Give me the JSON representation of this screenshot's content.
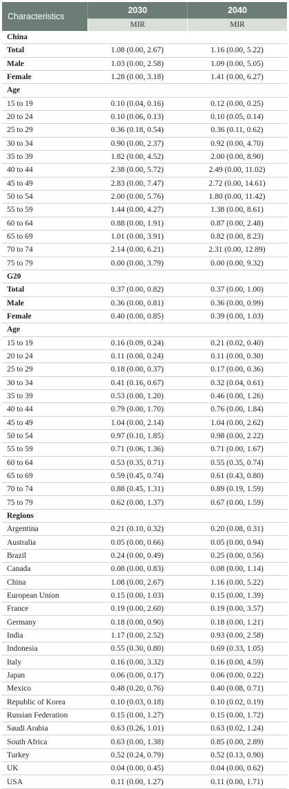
{
  "header": {
    "characteristics": "Characteristics",
    "year1": "2030",
    "year2": "2040",
    "sub1": "MIR",
    "sub2": "MIR"
  },
  "rows": [
    {
      "label": "China",
      "v1": "",
      "v2": "",
      "kind": "section"
    },
    {
      "label": "Total",
      "v1": "1.08 (0.00, 2.67)",
      "v2": "1.16 (0.00, 5.22)",
      "kind": "bold"
    },
    {
      "label": "Male",
      "v1": "1.03 (0.00, 2.58)",
      "v2": "1.09 (0.00, 5.05)",
      "kind": "bold"
    },
    {
      "label": "Female",
      "v1": "1.28 (0.00, 3.18)",
      "v2": "1.41 (0.00, 6.27)",
      "kind": "bold"
    },
    {
      "label": "Age",
      "v1": "",
      "v2": "",
      "kind": "section"
    },
    {
      "label": "15 to 19",
      "v1": "0.10 (0.04, 0.16)",
      "v2": "0.12 (0.00, 0.25)",
      "kind": "normal"
    },
    {
      "label": "20 to 24",
      "v1": "0.10 (0.06, 0.13)",
      "v2": "0.10 (0.05, 0.14)",
      "kind": "normal"
    },
    {
      "label": "25 to 29",
      "v1": "0.36 (0.18, 0.54)",
      "v2": "0.36 (0.11, 0.62)",
      "kind": "normal"
    },
    {
      "label": "30 to 34",
      "v1": "0.90 (0.00, 2.37)",
      "v2": "0.92 (0.00, 4.70)",
      "kind": "normal"
    },
    {
      "label": "35 to 39",
      "v1": "1.82 (0.00, 4.52)",
      "v2": "2.00 (0.00, 8.90)",
      "kind": "normal"
    },
    {
      "label": "40 to 44",
      "v1": "2.38 (0.00, 5.72)",
      "v2": "2.49 (0.00, 11.02)",
      "kind": "normal"
    },
    {
      "label": "45 to 49",
      "v1": "2.83 (0.00, 7.47)",
      "v2": "2.72 (0.00, 14.61)",
      "kind": "normal"
    },
    {
      "label": "50 to 54",
      "v1": "2.00 (0.00, 5.76)",
      "v2": "1.80 (0.00, 11.42)",
      "kind": "normal"
    },
    {
      "label": "55 to 59",
      "v1": "1.44 (0.00, 4.27)",
      "v2": "1.38 (0.00, 8.61)",
      "kind": "normal"
    },
    {
      "label": "60 to 64",
      "v1": "0.88 (0.00, 1.91)",
      "v2": "0.87 (0.00, 2.48)",
      "kind": "normal"
    },
    {
      "label": "65 to 69",
      "v1": "1.01 (0.00, 3.91)",
      "v2": "0.82 (0.00, 8.23)",
      "kind": "normal"
    },
    {
      "label": "70 to 74",
      "v1": "2.14 (0.00, 6.21)",
      "v2": "2.31 (0.00, 12.89)",
      "kind": "normal"
    },
    {
      "label": "75 to 79",
      "v1": "0.00 (0.00, 3.79)",
      "v2": "0.00 (0.00, 9.32)",
      "kind": "normal"
    },
    {
      "label": "G20",
      "v1": "",
      "v2": "",
      "kind": "section"
    },
    {
      "label": "Total",
      "v1": "0.37 (0.00, 0.82)",
      "v2": "0.37 (0.00, 1.00)",
      "kind": "bold"
    },
    {
      "label": "Male",
      "v1": "0.36 (0.00, 0.81)",
      "v2": "0.36 (0.00, 0.99)",
      "kind": "bold"
    },
    {
      "label": "Female",
      "v1": "0.40 (0.00, 0.85)",
      "v2": "0.39 (0.00, 1.03)",
      "kind": "bold"
    },
    {
      "label": "Age",
      "v1": "",
      "v2": "",
      "kind": "section"
    },
    {
      "label": "15 to 19",
      "v1": "0.16 (0.09, 0.24)",
      "v2": "0.21 (0.02, 0.40)",
      "kind": "normal"
    },
    {
      "label": "20 to 24",
      "v1": "0.11 (0.00, 0.24)",
      "v2": "0.11 (0.00, 0.30)",
      "kind": "normal"
    },
    {
      "label": "25 to 29",
      "v1": "0.18 (0.00, 0.37)",
      "v2": "0.17 (0.00, 0.36)",
      "kind": "normal"
    },
    {
      "label": "30 to 34",
      "v1": "0.41 (0.16, 0.67)",
      "v2": "0.32 (0.04, 0.61)",
      "kind": "normal"
    },
    {
      "label": "35 to 39",
      "v1": "0.53 (0.00, 1.20)",
      "v2": "0.46 (0.00, 1.26)",
      "kind": "normal"
    },
    {
      "label": "40 to 44",
      "v1": "0.79 (0.00, 1.70)",
      "v2": "0.76 (0.00, 1.84)",
      "kind": "normal"
    },
    {
      "label": "45 to 49",
      "v1": "1.04 (0.00, 2.14)",
      "v2": "1.04 (0.00, 2.62)",
      "kind": "normal"
    },
    {
      "label": "50 to 54",
      "v1": "0.97 (0.10, 1.85)",
      "v2": "0.98 (0.00, 2.22)",
      "kind": "normal"
    },
    {
      "label": "55 to 59",
      "v1": "0.71 (0.06, 1.36)",
      "v2": "0.71 (0.00, 1.67)",
      "kind": "normal"
    },
    {
      "label": "60 to 64",
      "v1": "0.53 (0.35, 0.71)",
      "v2": "0.55 (0.35, 0.74)",
      "kind": "normal"
    },
    {
      "label": "65 to 69",
      "v1": "0.59 (0.45, 0.74)",
      "v2": "0.61 (0.43, 0.80)",
      "kind": "normal"
    },
    {
      "label": "70 to 74",
      "v1": "0.88 (0.45, 1.31)",
      "v2": "0.89 (0.19, 1.59)",
      "kind": "normal"
    },
    {
      "label": "75 to 79",
      "v1": "0.62 (0.00, 1.37)",
      "v2": "0.67 (0.00, 1.59)",
      "kind": "normal"
    },
    {
      "label": "Regions",
      "v1": "",
      "v2": "",
      "kind": "section"
    },
    {
      "label": "Argentina",
      "v1": "0.21 (0.10, 0.32)",
      "v2": "0.20 (0.08, 0.31)",
      "kind": "normal"
    },
    {
      "label": "Australia",
      "v1": "0.05 (0.00, 0.66)",
      "v2": "0.05 (0.00, 0.94)",
      "kind": "normal"
    },
    {
      "label": "Brazil",
      "v1": "0.24 (0.00, 0.49)",
      "v2": "0.25 (0.00, 0.56)",
      "kind": "normal"
    },
    {
      "label": "Canada",
      "v1": "0.08 (0.00, 0.83)",
      "v2": "0.08 (0.00, 1.14)",
      "kind": "normal"
    },
    {
      "label": "China",
      "v1": "1.08 (0.00, 2.67)",
      "v2": "1.16 (0.00, 5.22)",
      "kind": "normal"
    },
    {
      "label": "European Union",
      "v1": "0.15 (0.00, 1.03)",
      "v2": "0.15 (0.00, 1.39)",
      "kind": "normal"
    },
    {
      "label": "France",
      "v1": "0.19 (0.00, 2.60)",
      "v2": "0.19 (0.00, 3.57)",
      "kind": "normal"
    },
    {
      "label": "Germany",
      "v1": "0.18 (0.00, 0.90)",
      "v2": "0.18 (0.00, 1.21)",
      "kind": "normal"
    },
    {
      "label": "India",
      "v1": "1.17 (0.00, 2.52)",
      "v2": "0.93 (0.00, 2.58)",
      "kind": "normal"
    },
    {
      "label": "Indonesia",
      "v1": "0.55 (0.30, 0.80)",
      "v2": "0.69 (0.33, 1.05)",
      "kind": "normal"
    },
    {
      "label": "Italy",
      "v1": "0.16 (0.00, 3.32)",
      "v2": "0.16 (0.00, 4.59)",
      "kind": "normal"
    },
    {
      "label": "Japan",
      "v1": "0.06 (0.00, 0.17)",
      "v2": "0.06 (0.00, 0.22)",
      "kind": "normal"
    },
    {
      "label": "Mexico",
      "v1": "0.48 (0.20, 0.76)",
      "v2": "0.40 (0.08, 0.71)",
      "kind": "normal"
    },
    {
      "label": "Republic of Korea",
      "v1": "0.10 (0.03, 0.18)",
      "v2": "0.10 (0.02, 0.19)",
      "kind": "normal"
    },
    {
      "label": "Russian Federation",
      "v1": "0.15 (0.00, 1.27)",
      "v2": "0.15 (0.00, 1.72)",
      "kind": "normal"
    },
    {
      "label": "Saudi Arabia",
      "v1": "0.63 (0.26, 1.01)",
      "v2": "0.63 (0.02, 1.24)",
      "kind": "normal"
    },
    {
      "label": "South Africa",
      "v1": "0.63 (0.00, 1.38)",
      "v2": "0.85 (0.00, 2.89)",
      "kind": "normal"
    },
    {
      "label": "Turkey",
      "v1": "0.52 (0.24, 0.79)",
      "v2": "0.52 (0.13, 0.90)",
      "kind": "normal"
    },
    {
      "label": "UK",
      "v1": "0.04 (0.00, 0.45)",
      "v2": "0.04 (0.00, 0.62)",
      "kind": "normal"
    },
    {
      "label": "USA",
      "v1": "0.11 (0.00, 1.27)",
      "v2": "0.11 (0.00, 1.71)",
      "kind": "normal"
    }
  ]
}
